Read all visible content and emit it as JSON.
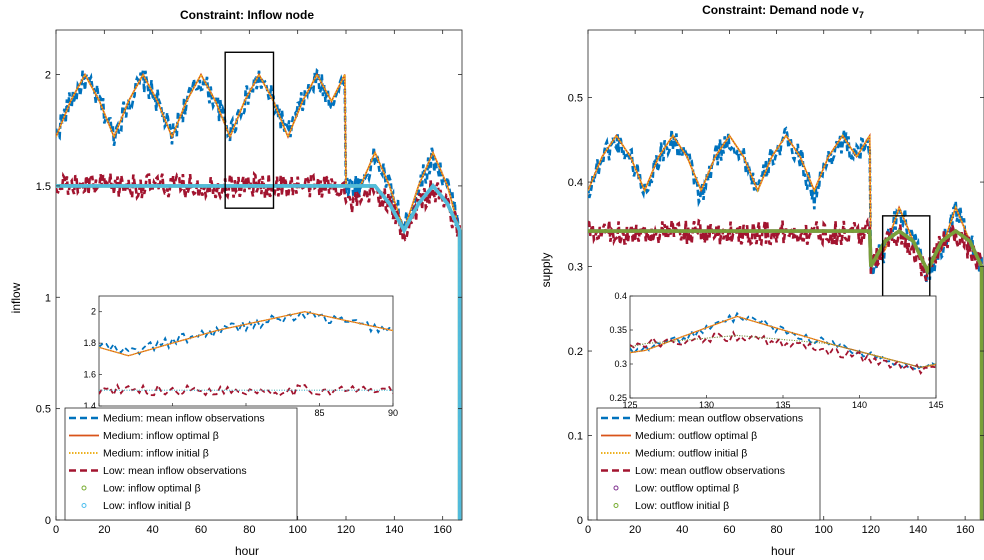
{
  "colors": {
    "medium_obs": "#0072BD",
    "medium_opt": "#D95319",
    "medium_init": "#EDB120",
    "low_obs": "#A2142F",
    "low_opt": "#77AC30",
    "low_init": "#4DBEEE",
    "low_opt_marker_right": "#7E2F8E"
  },
  "chart_data": [
    {
      "type": "line",
      "title": "Constraint: Inflow node",
      "xlabel": "hour",
      "ylabel": "inflow",
      "xlim": [
        0,
        168
      ],
      "ylim": [
        0,
        2.2
      ],
      "xticks": [
        "0",
        "20",
        "40",
        "60",
        "80",
        "100",
        "120",
        "140",
        "160"
      ],
      "yticks": [
        "0",
        "0.5",
        "1",
        "1.5",
        "2"
      ],
      "zoom_box": {
        "x": [
          70,
          90
        ],
        "y": [
          1.4,
          2.1
        ]
      },
      "series": [
        {
          "name": "Medium: mean inflow observations",
          "style": "dashed",
          "color": "#0072BD",
          "x": [
            0,
            6,
            12,
            18,
            24,
            30,
            36,
            42,
            48,
            54,
            60,
            66,
            72,
            78,
            84,
            90,
            96,
            102,
            108,
            114,
            119.5,
            120,
            126,
            132,
            138,
            144,
            150,
            156,
            162,
            167
          ],
          "y": [
            1.73,
            1.88,
            1.98,
            1.88,
            1.73,
            1.88,
            1.98,
            1.88,
            1.72,
            1.88,
            1.98,
            1.88,
            1.74,
            1.88,
            1.98,
            1.88,
            1.73,
            1.88,
            1.98,
            1.88,
            1.98,
            1.5,
            1.5,
            1.63,
            1.5,
            1.3,
            1.5,
            1.63,
            1.5,
            1.32
          ]
        },
        {
          "name": "Medium: inflow optimal β",
          "style": "solid",
          "color": "#D95319",
          "x": [
            0,
            6,
            12,
            18,
            24,
            30,
            36,
            42,
            48,
            54,
            60,
            66,
            72,
            78,
            84,
            90,
            96,
            102,
            108,
            114,
            119.5,
            120,
            126,
            132,
            138,
            144,
            150,
            156,
            162,
            167
          ],
          "y": [
            1.72,
            1.88,
            2.0,
            1.88,
            1.72,
            1.88,
            2.0,
            1.88,
            1.72,
            1.88,
            2.0,
            1.88,
            1.72,
            1.88,
            2.0,
            1.88,
            1.72,
            1.88,
            2.0,
            1.88,
            2.0,
            1.5,
            1.5,
            1.65,
            1.5,
            1.3,
            1.5,
            1.65,
            1.5,
            1.3
          ]
        },
        {
          "name": "Medium: inflow initial β",
          "style": "dotted",
          "color": "#EDB120",
          "x": [
            0,
            6,
            12,
            18,
            24,
            30,
            36,
            42,
            48,
            54,
            60,
            66,
            72,
            78,
            84,
            90,
            96,
            102,
            108,
            114,
            119.5,
            120,
            126,
            132,
            138,
            144,
            150,
            156,
            162,
            167
          ],
          "y": [
            1.72,
            1.88,
            2.0,
            1.88,
            1.72,
            1.88,
            2.0,
            1.88,
            1.72,
            1.88,
            2.0,
            1.88,
            1.72,
            1.88,
            2.0,
            1.88,
            1.72,
            1.88,
            2.0,
            1.88,
            2.0,
            1.5,
            1.5,
            1.65,
            1.5,
            1.3,
            1.5,
            1.65,
            1.5,
            1.3
          ]
        },
        {
          "name": "Low: mean inflow observations",
          "style": "dashed",
          "color": "#A2142F",
          "x": [
            0,
            119.5,
            120,
            126,
            132,
            138,
            144,
            150,
            156,
            162,
            167
          ],
          "y": [
            1.5,
            1.5,
            1.42,
            1.42,
            1.48,
            1.42,
            1.28,
            1.42,
            1.48,
            1.42,
            1.28
          ]
        },
        {
          "name": "Low: inflow optimal β",
          "style": "markers",
          "color": "#77AC30",
          "x": [
            0,
            119.5,
            120,
            126,
            132,
            138,
            144,
            150,
            156,
            162,
            167
          ],
          "y": [
            1.5,
            1.5,
            1.5,
            1.5,
            1.5,
            1.42,
            1.3,
            1.42,
            1.5,
            1.42,
            1.3
          ]
        },
        {
          "name": "Low: inflow initial β",
          "style": "markers",
          "color": "#4DBEEE",
          "x": [
            0,
            119.5,
            120,
            126,
            132,
            138,
            144,
            150,
            156,
            162,
            167
          ],
          "y": [
            1.5,
            1.5,
            1.5,
            1.5,
            1.5,
            1.42,
            1.3,
            1.42,
            1.5,
            1.42,
            1.3
          ]
        }
      ],
      "inset": {
        "xlim": [
          70,
          90
        ],
        "ylim": [
          1.4,
          2.1
        ],
        "xticks": [
          "70",
          "75",
          "80",
          "85",
          "90"
        ],
        "yticks": [
          "1.4",
          "1.6",
          "1.8",
          "2"
        ]
      },
      "legend": "lower-left"
    },
    {
      "type": "line",
      "title": "Constraint: Demand node v",
      "title_subscript": "7",
      "xlabel": "hour",
      "ylabel": "supply",
      "xlim": [
        0,
        168
      ],
      "ylim": [
        0,
        0.58
      ],
      "xticks": [
        "0",
        "20",
        "40",
        "60",
        "80",
        "100",
        "120",
        "140",
        "160"
      ],
      "yticks": [
        "0",
        "0.1",
        "0.2",
        "0.3",
        "0.4",
        "0.5"
      ],
      "zoom_box": {
        "x": [
          125,
          145
        ],
        "y": [
          0.265,
          0.36
        ]
      },
      "series": [
        {
          "name": "Medium: mean outflow observations",
          "style": "dashed",
          "color": "#0072BD",
          "x": [
            0,
            6,
            12,
            18,
            24,
            30,
            36,
            42,
            48,
            54,
            60,
            66,
            72,
            78,
            84,
            90,
            96,
            102,
            108,
            114,
            119.5,
            120,
            126,
            132,
            138,
            144,
            150,
            156,
            162,
            167
          ],
          "y": [
            0.39,
            0.43,
            0.45,
            0.43,
            0.39,
            0.43,
            0.45,
            0.43,
            0.38,
            0.43,
            0.45,
            0.43,
            0.39,
            0.43,
            0.45,
            0.43,
            0.38,
            0.43,
            0.45,
            0.43,
            0.45,
            0.3,
            0.32,
            0.37,
            0.33,
            0.29,
            0.32,
            0.37,
            0.33,
            0.3
          ]
        },
        {
          "name": "Medium: outflow optimal β",
          "style": "solid",
          "color": "#D95319",
          "x": [
            0,
            6,
            12,
            18,
            24,
            30,
            36,
            42,
            48,
            54,
            60,
            66,
            72,
            78,
            84,
            90,
            96,
            102,
            108,
            114,
            119.5,
            120,
            126,
            132,
            138,
            144,
            150,
            156,
            162,
            167
          ],
          "y": [
            0.39,
            0.43,
            0.455,
            0.43,
            0.39,
            0.43,
            0.455,
            0.43,
            0.39,
            0.43,
            0.455,
            0.43,
            0.39,
            0.43,
            0.455,
            0.43,
            0.39,
            0.43,
            0.455,
            0.43,
            0.455,
            0.3,
            0.32,
            0.37,
            0.33,
            0.295,
            0.32,
            0.37,
            0.33,
            0.3
          ]
        },
        {
          "name": "Medium: outflow initial β",
          "style": "dotted",
          "color": "#EDB120",
          "x": [
            0,
            6,
            12,
            18,
            24,
            30,
            36,
            42,
            48,
            54,
            60,
            66,
            72,
            78,
            84,
            90,
            96,
            102,
            108,
            114,
            119.5,
            120,
            126,
            132,
            138,
            144,
            150,
            156,
            162,
            167
          ],
          "y": [
            0.39,
            0.43,
            0.455,
            0.43,
            0.39,
            0.43,
            0.455,
            0.43,
            0.39,
            0.43,
            0.455,
            0.43,
            0.39,
            0.43,
            0.455,
            0.43,
            0.39,
            0.43,
            0.455,
            0.43,
            0.455,
            0.3,
            0.32,
            0.37,
            0.33,
            0.295,
            0.32,
            0.37,
            0.33,
            0.3
          ]
        },
        {
          "name": "Low: mean outflow observations",
          "style": "dashed",
          "color": "#A2142F",
          "x": [
            0,
            119.5,
            120,
            126,
            132,
            138,
            144,
            150,
            156,
            162,
            167
          ],
          "y": [
            0.34,
            0.34,
            0.3,
            0.33,
            0.34,
            0.32,
            0.29,
            0.33,
            0.34,
            0.32,
            0.3
          ]
        },
        {
          "name": "Low: outflow optimal β",
          "style": "markers",
          "color": "#7E2F8E",
          "x": [
            0,
            119.5,
            120,
            126,
            132,
            138,
            144,
            150,
            156,
            162,
            167
          ],
          "y": [
            0.342,
            0.342,
            0.3,
            0.33,
            0.342,
            0.33,
            0.295,
            0.33,
            0.342,
            0.33,
            0.3
          ]
        },
        {
          "name": "Low: outflow initial β",
          "style": "markers",
          "color": "#77AC30",
          "x": [
            0,
            119.5,
            120,
            126,
            132,
            138,
            144,
            150,
            156,
            162,
            167
          ],
          "y": [
            0.342,
            0.342,
            0.3,
            0.33,
            0.342,
            0.33,
            0.295,
            0.33,
            0.342,
            0.33,
            0.3
          ]
        }
      ],
      "inset": {
        "xlim": [
          125,
          145
        ],
        "ylim": [
          0.25,
          0.4
        ],
        "xticks": [
          "125",
          "130",
          "135",
          "140",
          "145"
        ],
        "yticks": [
          "0.25",
          "0.3",
          "0.35",
          "0.4"
        ]
      },
      "legend": "lower-left"
    }
  ]
}
